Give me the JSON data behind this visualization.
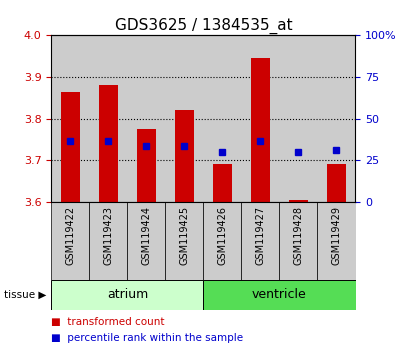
{
  "title": "GDS3625 / 1384535_at",
  "samples": [
    "GSM119422",
    "GSM119423",
    "GSM119424",
    "GSM119425",
    "GSM119426",
    "GSM119427",
    "GSM119428",
    "GSM119429"
  ],
  "bar_bottom": 3.6,
  "bar_tops": [
    3.865,
    3.88,
    3.775,
    3.82,
    3.69,
    3.945,
    3.605,
    3.69
  ],
  "percentile_values": [
    3.745,
    3.745,
    3.735,
    3.735,
    3.72,
    3.745,
    3.72,
    3.725
  ],
  "bar_color": "#cc0000",
  "dot_color": "#0000cc",
  "ylim": [
    3.6,
    4.0
  ],
  "y2lim": [
    0,
    100
  ],
  "yticks": [
    3.6,
    3.7,
    3.8,
    3.9,
    4.0
  ],
  "y2ticks": [
    0,
    25,
    50,
    75,
    100
  ],
  "y2ticklabels": [
    "0",
    "25",
    "50",
    "75",
    "100%"
  ],
  "grid_values": [
    3.7,
    3.8,
    3.9
  ],
  "tissue_groups": [
    {
      "label": "atrium",
      "start": 0,
      "end": 4,
      "color": "#ccffcc"
    },
    {
      "label": "ventricle",
      "start": 4,
      "end": 8,
      "color": "#55dd55"
    }
  ],
  "legend_items": [
    {
      "label": "transformed count",
      "color": "#cc0000"
    },
    {
      "label": "percentile rank within the sample",
      "color": "#0000cc"
    }
  ],
  "tissue_label": "tissue",
  "bar_width": 0.5,
  "col_bg": "#cccccc",
  "tick_color_left": "#cc0000",
  "tick_color_right": "#0000cc",
  "title_fontsize": 11,
  "axis_fontsize": 8,
  "label_fontsize": 8
}
